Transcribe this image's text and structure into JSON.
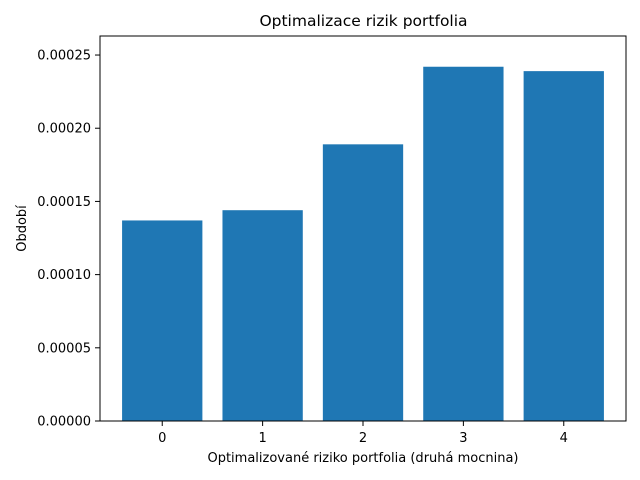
{
  "chart_data": {
    "type": "bar",
    "title": "Optimalizace rizik portfolia",
    "xlabel": "Optimalizované riziko portfolia (druhá mocnina)",
    "ylabel": "Období",
    "categories": [
      "0",
      "1",
      "2",
      "3",
      "4"
    ],
    "values": [
      0.000137,
      0.000144,
      0.000189,
      0.000242,
      0.000239
    ],
    "ylim": [
      0,
      0.000263
    ],
    "yticks": [
      "0.00000",
      "0.00005",
      "0.00010",
      "0.00015",
      "0.00020",
      "0.00025"
    ],
    "ytick_values": [
      0,
      5e-05,
      0.0001,
      0.00015,
      0.0002,
      0.00025
    ],
    "grid": false,
    "legend": "none",
    "bar_color": "#1f77b4"
  }
}
